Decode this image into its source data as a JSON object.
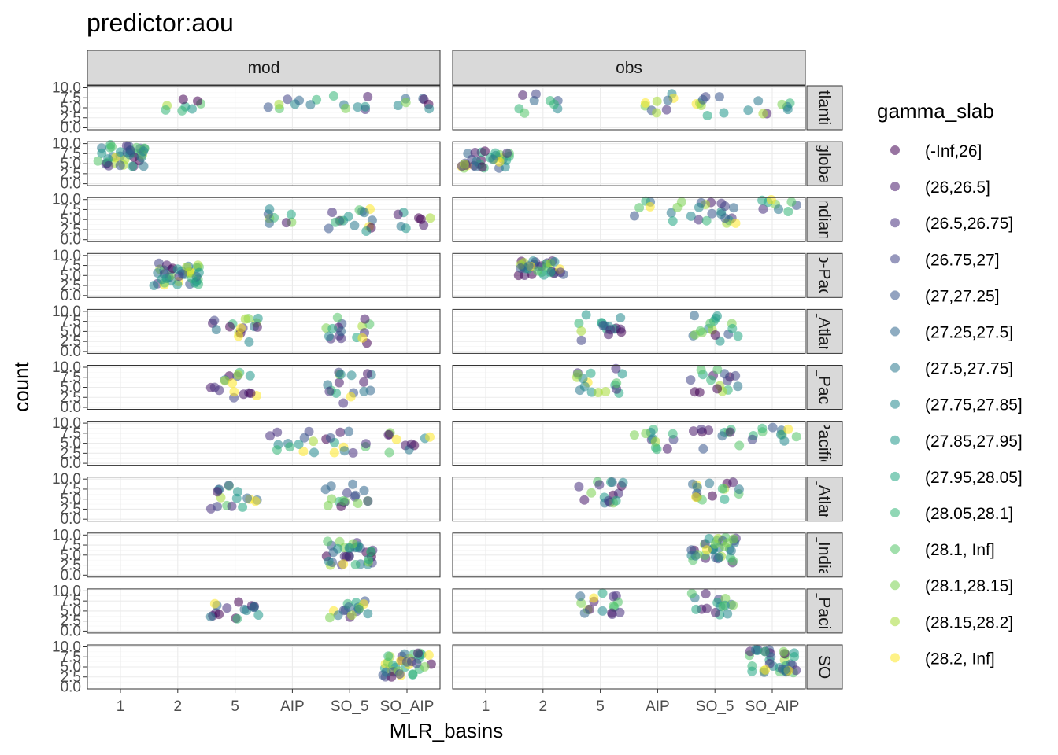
{
  "chart_data": {
    "type": "scatter",
    "title": "predictor:aou",
    "xlabel": "MLR_basins",
    "ylabel": "count",
    "x_categories": [
      "1",
      "2",
      "5",
      "AIP",
      "SO_5",
      "SO_AIP"
    ],
    "y_ticks": [
      "0.0",
      "2.5",
      "5.0",
      "7.5",
      "10.0"
    ],
    "ylim": [
      0,
      10
    ],
    "facet_cols": [
      "mod",
      "obs"
    ],
    "facet_rows": [
      "Atlantic",
      "global",
      "Indian",
      "Indo-Pacific",
      "N_Atlantic",
      "N_Pacific",
      "Pacific",
      "S_Atlantic",
      "S_Indian",
      "S_Pacific",
      "SO"
    ],
    "facet_rows_visible": [
      "tlanti",
      "globa",
      "ndian",
      "o-Pac",
      "_Atlan",
      "_Paci",
      "Pacific",
      "_Atlan",
      "_India",
      "_Pacif",
      "SO"
    ],
    "legend": {
      "title": "gamma_slab",
      "position": "right",
      "labels": [
        "(-Inf,26]",
        "(26,26.5]",
        "(26.5,26.75]",
        "(26.75,27]",
        "(27,27.25]",
        "(27.25,27.5]",
        "(27.5,27.75]",
        "(27.75,27.85]",
        "(27.85,27.95]",
        "(27.95,28.05]",
        "(28.05,28.1]",
        "(28.1, Inf]",
        "(28.1,28.15]",
        "(28.15,28.2]",
        "(28.2, Inf]"
      ],
      "colors": [
        "#440154",
        "#481A6C",
        "#472F7D",
        "#414487",
        "#39568C",
        "#31688E",
        "#2A788E",
        "#23888E",
        "#1F988B",
        "#22A884",
        "#35B779",
        "#54C568",
        "#7AD151",
        "#A5DB36",
        "#FDE725"
      ]
    },
    "point_alpha": 0.55,
    "clusters": [
      {
        "row": 0,
        "col": 0,
        "categories": [
          2,
          4,
          5,
          6
        ],
        "y_range": [
          3.8,
          8.5
        ],
        "n": 30
      },
      {
        "row": 0,
        "col": 1,
        "categories": [
          2,
          4,
          5,
          6
        ],
        "y_range": [
          3.0,
          8.5
        ],
        "n": 34
      },
      {
        "row": 1,
        "col": 0,
        "categories": [
          1
        ],
        "y_range": [
          4.2,
          10.0
        ],
        "n": 40
      },
      {
        "row": 1,
        "col": 1,
        "categories": [
          1
        ],
        "y_range": [
          3.8,
          8.5
        ],
        "n": 34
      },
      {
        "row": 2,
        "col": 0,
        "categories": [
          5,
          4,
          5,
          6
        ],
        "y_range": [
          2.0,
          7.8
        ],
        "n": 32
      },
      {
        "row": 2,
        "col": 1,
        "categories": [
          5,
          4,
          5,
          6
        ],
        "y_range": [
          4.0,
          10.0
        ],
        "n": 36
      },
      {
        "row": 3,
        "col": 0,
        "categories": [
          2
        ],
        "y_range": [
          2.5,
          8.5
        ],
        "n": 40
      },
      {
        "row": 3,
        "col": 1,
        "categories": [
          2
        ],
        "y_range": [
          5.0,
          9.0
        ],
        "n": 34
      },
      {
        "row": 4,
        "col": 0,
        "categories": [
          3,
          5
        ],
        "y_range": [
          2.0,
          8.5
        ],
        "n": 34
      },
      {
        "row": 4,
        "col": 1,
        "categories": [
          3,
          5
        ],
        "y_range": [
          2.5,
          9.5
        ],
        "n": 34
      },
      {
        "row": 5,
        "col": 0,
        "categories": [
          3,
          5
        ],
        "y_range": [
          0.5,
          9.0
        ],
        "n": 34
      },
      {
        "row": 5,
        "col": 1,
        "categories": [
          3,
          5
        ],
        "y_range": [
          3.5,
          10.0
        ],
        "n": 34
      },
      {
        "row": 6,
        "col": 0,
        "categories": [
          4,
          5,
          6
        ],
        "y_range": [
          2.5,
          8.0
        ],
        "n": 34
      },
      {
        "row": 6,
        "col": 1,
        "categories": [
          4,
          5,
          6
        ],
        "y_range": [
          3.5,
          9.0
        ],
        "n": 34
      },
      {
        "row": 7,
        "col": 0,
        "categories": [
          3,
          5
        ],
        "y_range": [
          2.5,
          9.0
        ],
        "n": 34
      },
      {
        "row": 7,
        "col": 1,
        "categories": [
          3,
          5
        ],
        "y_range": [
          4.0,
          9.5
        ],
        "n": 34
      },
      {
        "row": 8,
        "col": 0,
        "categories": [
          5
        ],
        "y_range": [
          2.5,
          8.5
        ],
        "n": 36
      },
      {
        "row": 8,
        "col": 1,
        "categories": [
          5
        ],
        "y_range": [
          3.0,
          9.5
        ],
        "n": 36
      },
      {
        "row": 9,
        "col": 0,
        "categories": [
          3,
          5
        ],
        "y_range": [
          3.0,
          7.5
        ],
        "n": 34
      },
      {
        "row": 9,
        "col": 1,
        "categories": [
          3,
          5
        ],
        "y_range": [
          4.0,
          9.5
        ],
        "n": 34
      },
      {
        "row": 10,
        "col": 0,
        "categories": [
          6
        ],
        "y_range": [
          2.5,
          8.5
        ],
        "n": 38
      },
      {
        "row": 10,
        "col": 1,
        "categories": [
          6
        ],
        "y_range": [
          3.5,
          9.5
        ],
        "n": 36
      }
    ]
  }
}
